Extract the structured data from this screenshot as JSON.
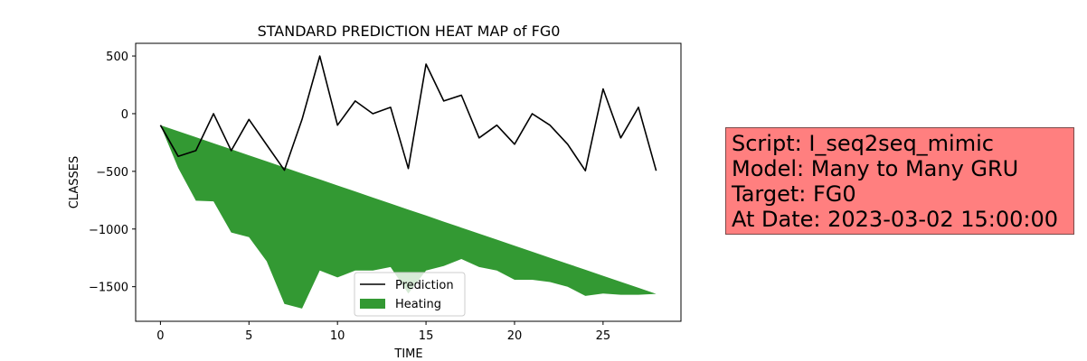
{
  "chart_data": {
    "type": "line",
    "title": "STANDARD PREDICTION HEAT MAP of FG0",
    "xlabel": "TIME",
    "ylabel": "CLASSES",
    "xlim": [
      -1.4,
      29.4
    ],
    "ylim": [
      -1800,
      610
    ],
    "xticks": [
      0,
      5,
      10,
      15,
      20,
      25
    ],
    "yticks": [
      500,
      0,
      -500,
      -1000,
      -1500
    ],
    "ytick_labels": [
      "500",
      "0",
      "−500",
      "−1000",
      "−1500"
    ],
    "grid": false,
    "legend": {
      "placement": "lower-center",
      "entries": [
        "Prediction",
        "Heating"
      ]
    },
    "series": [
      {
        "name": "Prediction",
        "kind": "line",
        "color": "#000000",
        "x": [
          0,
          1,
          2,
          3,
          4,
          5,
          6,
          7,
          8,
          9,
          10,
          11,
          12,
          13,
          14,
          15,
          16,
          17,
          18,
          19,
          20,
          21,
          22,
          23,
          24,
          25,
          26,
          27,
          28
        ],
        "values": [
          -100,
          -370,
          -320,
          0,
          -320,
          -50,
          -270,
          -490,
          -50,
          500,
          -100,
          110,
          0,
          55,
          -475,
          430,
          110,
          160,
          -210,
          -100,
          -265,
          0,
          -100,
          -265,
          -495,
          215,
          -210,
          55,
          -495
        ]
      },
      {
        "name": "Heating",
        "kind": "fill_between",
        "color": "#339933",
        "x": [
          0,
          1,
          2,
          3,
          4,
          5,
          6,
          7,
          8,
          9,
          10,
          11,
          12,
          13,
          14,
          15,
          16,
          17,
          18,
          19,
          20,
          21,
          22,
          23,
          24,
          25,
          26,
          27,
          28
        ],
        "upper": [
          -100,
          -152,
          -204,
          -257,
          -309,
          -361,
          -413,
          -466,
          -518,
          -570,
          -622,
          -674,
          -727,
          -779,
          -831,
          -883,
          -936,
          -988,
          -1040,
          -1092,
          -1144,
          -1197,
          -1249,
          -1301,
          -1353,
          -1406,
          -1458,
          -1510,
          -1562
        ],
        "lower": [
          -100,
          -470,
          -755,
          -760,
          -1030,
          -1070,
          -1280,
          -1650,
          -1690,
          -1360,
          -1420,
          -1360,
          -1360,
          -1330,
          -1560,
          -1360,
          -1320,
          -1260,
          -1330,
          -1360,
          -1440,
          -1440,
          -1460,
          -1500,
          -1580,
          -1560,
          -1570,
          -1570,
          -1562
        ]
      }
    ]
  },
  "info_box": {
    "script": "Script: I_seq2seq_mimic",
    "model": "Model: Many to Many GRU",
    "target": "Target: FG0",
    "date": "At Date: 2023-03-02 15:00:00"
  }
}
